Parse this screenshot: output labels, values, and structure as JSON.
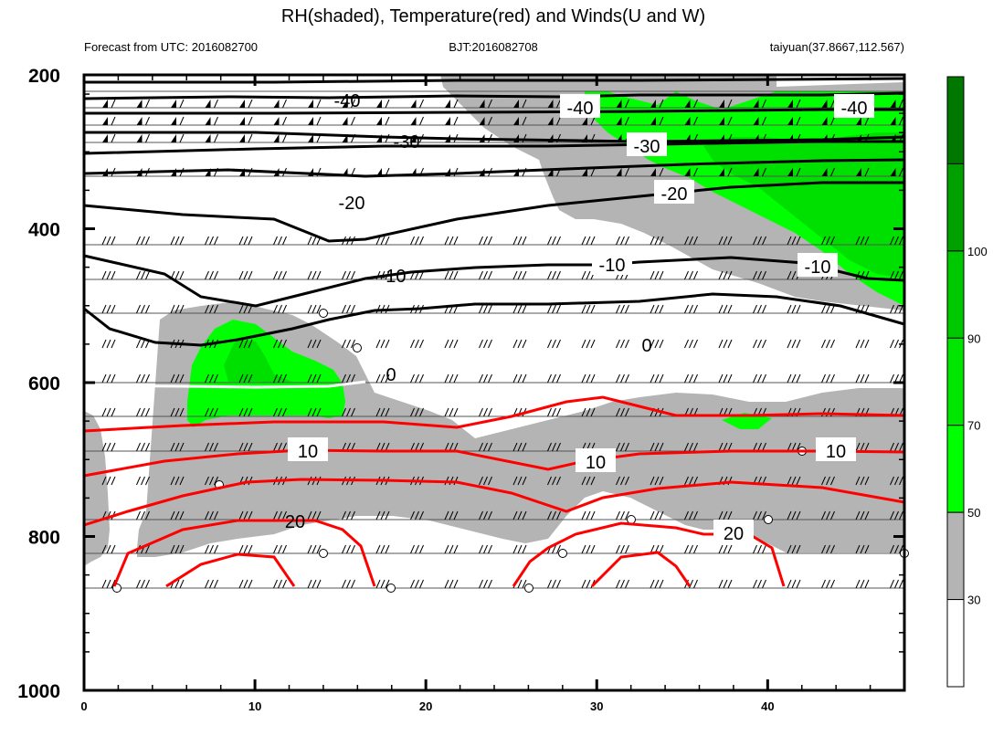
{
  "chart_data": {
    "type": "contour",
    "title": "RH(shaded), Temperature(red) and Winds(U and W)",
    "subtitle_left": "Forecast from UTC: 2016082700",
    "subtitle_center": "BJT:2016082708",
    "subtitle_right": "taiyuan(37.8667,112.567)",
    "x_ticks": [
      "0",
      "10",
      "20",
      "30",
      "40"
    ],
    "x_range": [
      0,
      48
    ],
    "y_ticks": [
      "200",
      "400",
      "600",
      "800",
      "1000"
    ],
    "y_range": [
      200,
      1000
    ],
    "pressure_levels": [
      200,
      225,
      250,
      275,
      300,
      350,
      400,
      450,
      500,
      550,
      600,
      650,
      700,
      750,
      800,
      850,
      900,
      925,
      950,
      1000
    ],
    "colorbar_ticks": [
      "30",
      "50",
      "70",
      "90",
      "100"
    ],
    "colorbar_colors": [
      "#ffffff",
      "#b4b4b4",
      "#00ff00",
      "#00e600",
      "#00c800",
      "#00a000",
      "#007800"
    ],
    "temperature_labels": [
      "-40",
      "-40",
      "-40",
      "-30",
      "-30",
      "-20",
      "-20",
      "-10",
      "-10",
      "-10",
      "0",
      "0",
      "10",
      "10",
      "10",
      "20",
      "20"
    ],
    "colors": {
      "rh_gray": "#b4b4b4",
      "rh_green": "#00ff00",
      "rh_green2": "#00e000",
      "temperature": "#ff0000",
      "zero_line": "#ffffff"
    }
  }
}
